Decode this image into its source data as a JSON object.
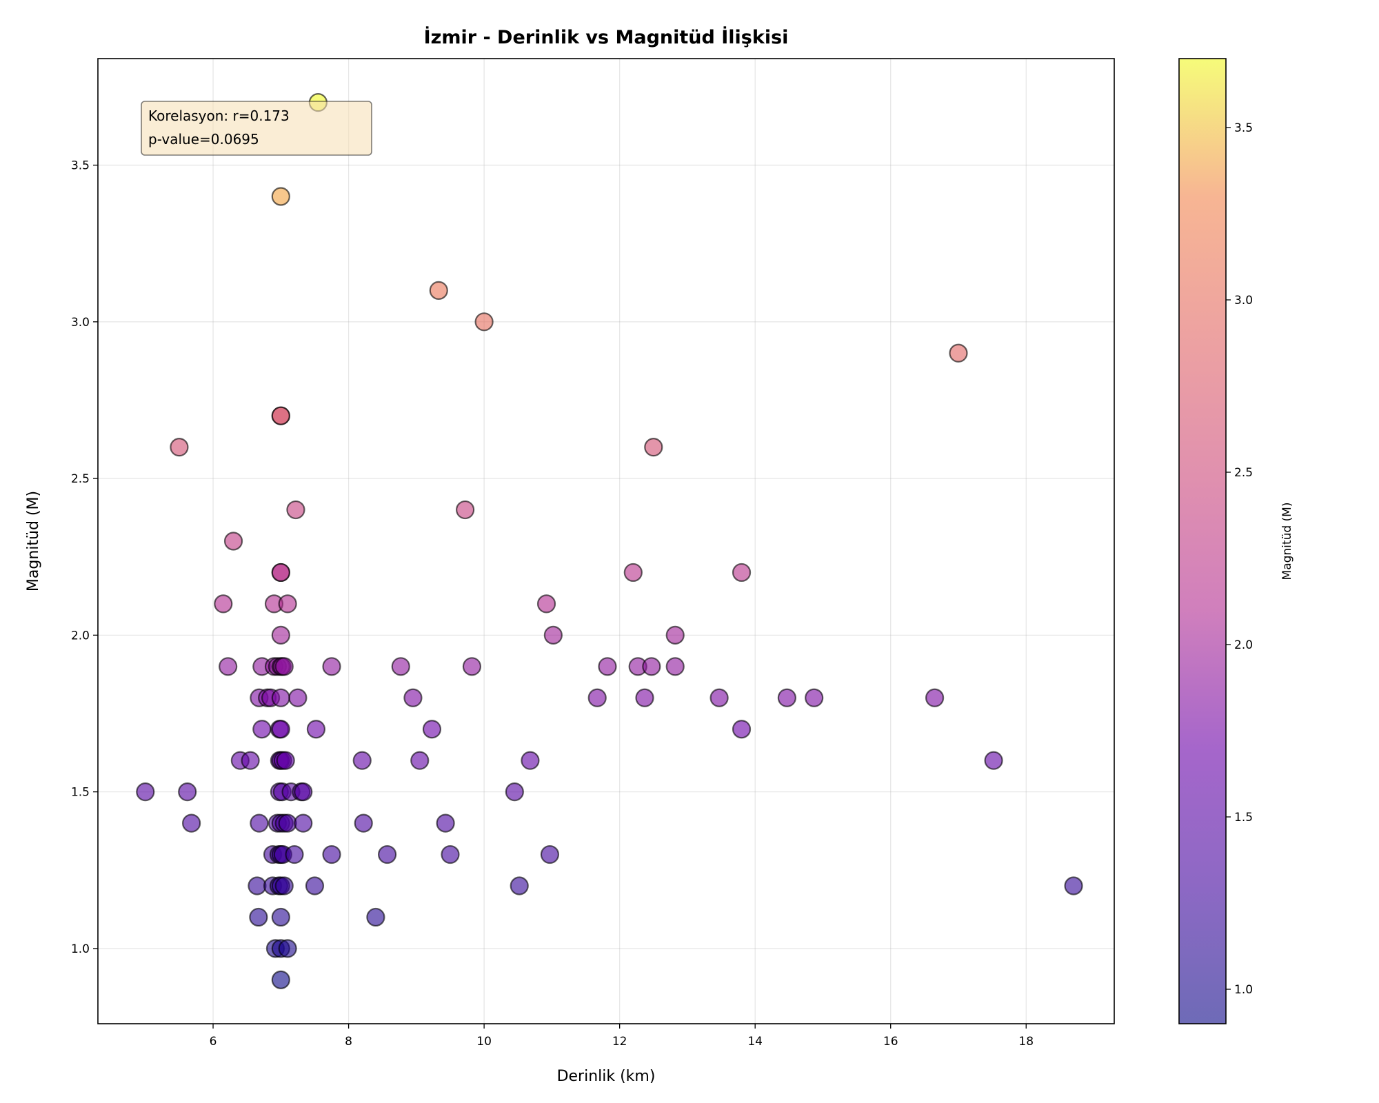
{
  "chart_data": {
    "type": "scatter",
    "title": "İzmir - Derinlik vs Magnitüd İlişkisi",
    "xlabel": "Derinlik (km)",
    "ylabel": "Magnitüd (M)",
    "xlim": [
      4.3,
      19.3
    ],
    "ylim": [
      0.76,
      3.84
    ],
    "xticks": [
      6,
      8,
      10,
      12,
      14,
      16,
      18
    ],
    "yticks": [
      1.0,
      1.5,
      2.0,
      2.5,
      3.0,
      3.5
    ],
    "xtick_labels": [
      "6",
      "8",
      "10",
      "12",
      "14",
      "16",
      "18"
    ],
    "ytick_labels": [
      "1.0",
      "1.5",
      "2.0",
      "2.5",
      "3.0",
      "3.5"
    ],
    "grid": true,
    "colormap": "plasma",
    "marker_alpha": 0.6,
    "marker_edge_color": "#000000",
    "colorbar": {
      "label": "Magnitüd (M)",
      "range": [
        0.9,
        3.7
      ],
      "ticks": [
        1.0,
        1.5,
        2.0,
        2.5,
        3.0,
        3.5
      ],
      "tick_labels": [
        "1.0",
        "1.5",
        "2.0",
        "2.5",
        "3.0",
        "3.5"
      ]
    },
    "annotation": {
      "lines": [
        "Korelasyon: r=0.173",
        "p-value=0.0695"
      ],
      "placement": "top-left",
      "background": "#f5deb3"
    },
    "points": [
      {
        "x": 7.55,
        "y": 3.7
      },
      {
        "x": 7.0,
        "y": 3.4
      },
      {
        "x": 9.33,
        "y": 3.1
      },
      {
        "x": 10.0,
        "y": 3.0
      },
      {
        "x": 17.0,
        "y": 2.9
      },
      {
        "x": 7.0,
        "y": 2.7
      },
      {
        "x": 7.0,
        "y": 2.7
      },
      {
        "x": 5.5,
        "y": 2.6
      },
      {
        "x": 12.5,
        "y": 2.6
      },
      {
        "x": 7.22,
        "y": 2.4
      },
      {
        "x": 9.72,
        "y": 2.4
      },
      {
        "x": 6.3,
        "y": 2.3
      },
      {
        "x": 7.0,
        "y": 2.2
      },
      {
        "x": 7.0,
        "y": 2.2
      },
      {
        "x": 12.2,
        "y": 2.2
      },
      {
        "x": 13.8,
        "y": 2.2
      },
      {
        "x": 6.15,
        "y": 2.1
      },
      {
        "x": 6.9,
        "y": 2.1
      },
      {
        "x": 7.1,
        "y": 2.1
      },
      {
        "x": 10.92,
        "y": 2.1
      },
      {
        "x": 7.0,
        "y": 2.0
      },
      {
        "x": 11.02,
        "y": 2.0
      },
      {
        "x": 12.82,
        "y": 2.0
      },
      {
        "x": 6.22,
        "y": 1.9
      },
      {
        "x": 6.72,
        "y": 1.9
      },
      {
        "x": 6.9,
        "y": 1.9
      },
      {
        "x": 6.95,
        "y": 1.9
      },
      {
        "x": 7.0,
        "y": 1.9
      },
      {
        "x": 7.02,
        "y": 1.9
      },
      {
        "x": 7.05,
        "y": 1.9
      },
      {
        "x": 7.75,
        "y": 1.9
      },
      {
        "x": 8.77,
        "y": 1.9
      },
      {
        "x": 9.82,
        "y": 1.9
      },
      {
        "x": 11.82,
        "y": 1.9
      },
      {
        "x": 12.27,
        "y": 1.9
      },
      {
        "x": 12.47,
        "y": 1.9
      },
      {
        "x": 12.82,
        "y": 1.9
      },
      {
        "x": 6.68,
        "y": 1.8
      },
      {
        "x": 6.8,
        "y": 1.8
      },
      {
        "x": 6.85,
        "y": 1.8
      },
      {
        "x": 7.0,
        "y": 1.8
      },
      {
        "x": 7.25,
        "y": 1.8
      },
      {
        "x": 8.95,
        "y": 1.8
      },
      {
        "x": 11.67,
        "y": 1.8
      },
      {
        "x": 12.37,
        "y": 1.8
      },
      {
        "x": 13.47,
        "y": 1.8
      },
      {
        "x": 14.47,
        "y": 1.8
      },
      {
        "x": 14.87,
        "y": 1.8
      },
      {
        "x": 16.65,
        "y": 1.8
      },
      {
        "x": 6.72,
        "y": 1.7
      },
      {
        "x": 6.98,
        "y": 1.7
      },
      {
        "x": 7.0,
        "y": 1.7
      },
      {
        "x": 7.52,
        "y": 1.7
      },
      {
        "x": 9.23,
        "y": 1.7
      },
      {
        "x": 13.8,
        "y": 1.7
      },
      {
        "x": 6.4,
        "y": 1.6
      },
      {
        "x": 6.55,
        "y": 1.6
      },
      {
        "x": 6.98,
        "y": 1.6
      },
      {
        "x": 7.0,
        "y": 1.6
      },
      {
        "x": 7.03,
        "y": 1.6
      },
      {
        "x": 7.07,
        "y": 1.6
      },
      {
        "x": 8.2,
        "y": 1.6
      },
      {
        "x": 9.05,
        "y": 1.6
      },
      {
        "x": 10.68,
        "y": 1.6
      },
      {
        "x": 17.52,
        "y": 1.6
      },
      {
        "x": 5.0,
        "y": 1.5
      },
      {
        "x": 5.62,
        "y": 1.5
      },
      {
        "x": 6.98,
        "y": 1.5
      },
      {
        "x": 7.02,
        "y": 1.5
      },
      {
        "x": 7.15,
        "y": 1.5
      },
      {
        "x": 7.3,
        "y": 1.5
      },
      {
        "x": 7.33,
        "y": 1.5
      },
      {
        "x": 10.45,
        "y": 1.5
      },
      {
        "x": 5.68,
        "y": 1.4
      },
      {
        "x": 6.68,
        "y": 1.4
      },
      {
        "x": 6.95,
        "y": 1.4
      },
      {
        "x": 7.0,
        "y": 1.4
      },
      {
        "x": 7.05,
        "y": 1.4
      },
      {
        "x": 7.1,
        "y": 1.4
      },
      {
        "x": 7.33,
        "y": 1.4
      },
      {
        "x": 8.22,
        "y": 1.4
      },
      {
        "x": 9.43,
        "y": 1.4
      },
      {
        "x": 6.88,
        "y": 1.3
      },
      {
        "x": 6.97,
        "y": 1.3
      },
      {
        "x": 7.0,
        "y": 1.3
      },
      {
        "x": 7.03,
        "y": 1.3
      },
      {
        "x": 7.2,
        "y": 1.3
      },
      {
        "x": 7.75,
        "y": 1.3
      },
      {
        "x": 8.57,
        "y": 1.3
      },
      {
        "x": 9.5,
        "y": 1.3
      },
      {
        "x": 10.97,
        "y": 1.3
      },
      {
        "x": 6.65,
        "y": 1.2
      },
      {
        "x": 6.88,
        "y": 1.2
      },
      {
        "x": 6.97,
        "y": 1.2
      },
      {
        "x": 7.0,
        "y": 1.2
      },
      {
        "x": 7.05,
        "y": 1.2
      },
      {
        "x": 7.5,
        "y": 1.2
      },
      {
        "x": 10.52,
        "y": 1.2
      },
      {
        "x": 18.7,
        "y": 1.2
      },
      {
        "x": 6.67,
        "y": 1.1
      },
      {
        "x": 7.0,
        "y": 1.1
      },
      {
        "x": 8.4,
        "y": 1.1
      },
      {
        "x": 6.92,
        "y": 1.0
      },
      {
        "x": 7.0,
        "y": 1.0
      },
      {
        "x": 7.1,
        "y": 1.0
      },
      {
        "x": 7.0,
        "y": 0.9
      }
    ]
  }
}
